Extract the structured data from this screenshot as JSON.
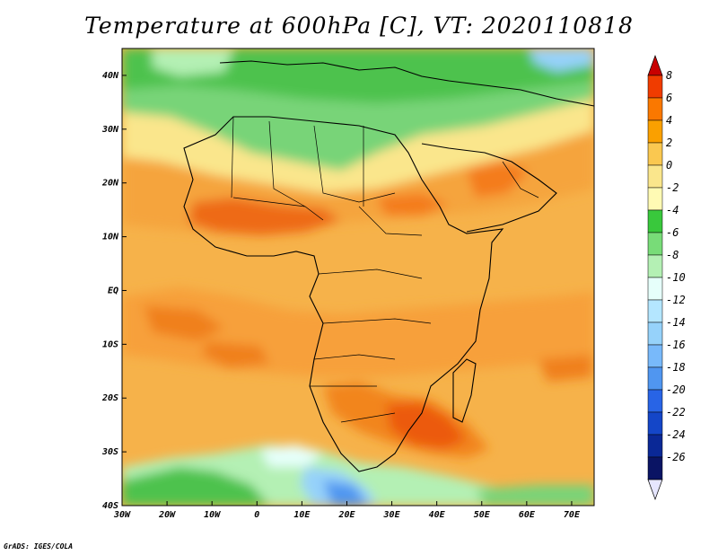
{
  "title": "Temperature at 600hPa [C], VT: 2020110818",
  "credit": "GrADS: IGES/COLA",
  "map": {
    "lon_range": [
      -30,
      75
    ],
    "lat_range": [
      -40,
      45
    ],
    "x_ticks": [
      {
        "lon": -30,
        "label": "30W"
      },
      {
        "lon": -20,
        "label": "20W"
      },
      {
        "lon": -10,
        "label": "10W"
      },
      {
        "lon": 0,
        "label": "0"
      },
      {
        "lon": 10,
        "label": "10E"
      },
      {
        "lon": 20,
        "label": "20E"
      },
      {
        "lon": 30,
        "label": "30E"
      },
      {
        "lon": 40,
        "label": "40E"
      },
      {
        "lon": 50,
        "label": "50E"
      },
      {
        "lon": 60,
        "label": "60E"
      },
      {
        "lon": 70,
        "label": "70E"
      }
    ],
    "y_ticks": [
      {
        "lat": 40,
        "label": "40N"
      },
      {
        "lat": 30,
        "label": "30N"
      },
      {
        "lat": 20,
        "label": "20N"
      },
      {
        "lat": 10,
        "label": "10N"
      },
      {
        "lat": 0,
        "label": "EQ"
      },
      {
        "lat": -10,
        "label": "10S"
      },
      {
        "lat": -20,
        "label": "20S"
      },
      {
        "lat": -30,
        "label": "30S"
      },
      {
        "lat": -40,
        "label": "40S"
      }
    ]
  },
  "colorbar": {
    "labels": [
      "8",
      "6",
      "4",
      "2",
      "0",
      "-2",
      "-4",
      "-6",
      "-8",
      "-10",
      "-12",
      "-14",
      "-16",
      "-18",
      "-20",
      "-22",
      "-24",
      "-26"
    ],
    "colors": [
      "#c80000",
      "#f03c00",
      "#fa7800",
      "#faa000",
      "#fac850",
      "#fae68c",
      "#fffab4",
      "#39c83c",
      "#78dc78",
      "#b4f0b4",
      "#e6fffa",
      "#b4e6ff",
      "#96d2fa",
      "#78b9fa",
      "#5096f0",
      "#2864e6",
      "#1446c8",
      "#0a2896",
      "#0a1464",
      "#e6e6ff"
    ],
    "over_color": "#c80000",
    "under_color": "#e6e6ff"
  }
}
